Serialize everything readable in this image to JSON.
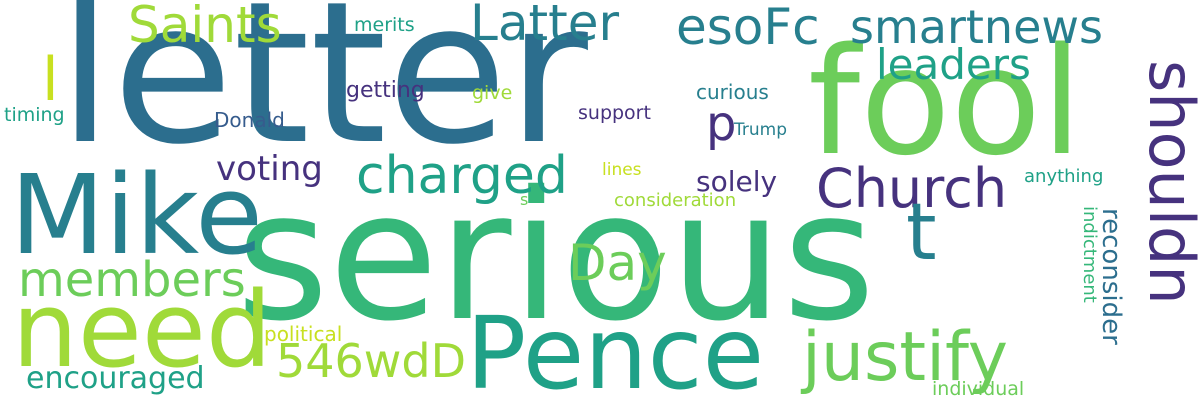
{
  "palette": {
    "dark_purple": "#46327e",
    "deep_blue": "#365c8d",
    "steel_blue": "#2c6e8e",
    "teal": "#277f8e",
    "sea": "#1fa187",
    "green": "#35b779",
    "light_green": "#6ccd5a",
    "lime": "#a0da39",
    "yellow": "#c8e020"
  },
  "words": {
    "letter": "letter",
    "serious": "serious",
    "fool": "fool",
    "mike": "Mike",
    "need": "need",
    "pence": "Pence",
    "shouldn": "shouldn",
    "justify": "justify",
    "church": "Church",
    "saints": "Saints",
    "latter": "Latter",
    "esofc": "esoFc",
    "smartnews": "smartnews",
    "leaders": "leaders",
    "charged": "charged",
    "members": "members",
    "day": "Day",
    "t": "t",
    "p": "p",
    "l": "l",
    "s": "s",
    "code": "546wdD",
    "encouraged": "encouraged",
    "reconsider": "reconsider",
    "voting": "voting",
    "solely": "solely",
    "merits": "merits",
    "getting": "getting",
    "give": "give",
    "curious": "curious",
    "support": "support",
    "timing": "timing",
    "donald": "Donald",
    "trump": "Trump",
    "lines": "lines",
    "consideration": "consideration",
    "anything": "anything",
    "indictment": "indictment",
    "political": "political",
    "individual": "individual"
  }
}
